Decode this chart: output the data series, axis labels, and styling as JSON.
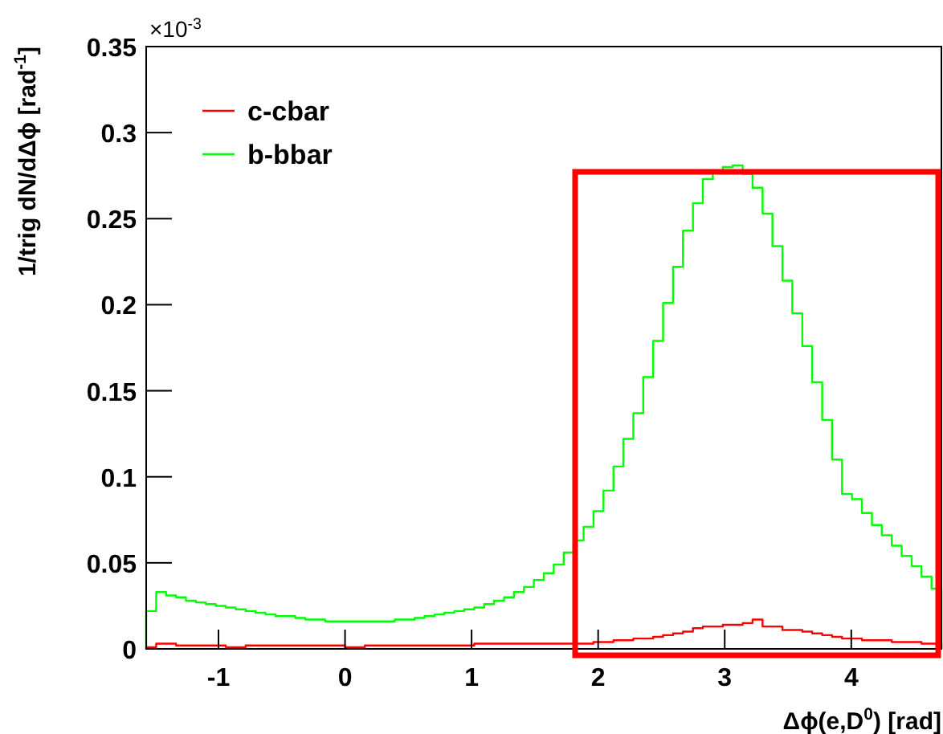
{
  "chart_data": {
    "type": "histogram",
    "xlabel": "Δϕ(e,D$^{0}$) [rad]",
    "ylabel": "1/trig dN/dΔϕ [rad$^{-1}$]",
    "annotations": [
      "×10$^{-3}$"
    ],
    "bins": [
      -1.571,
      -1.492,
      -1.414,
      -1.335,
      -1.257,
      -1.178,
      -1.1,
      -1.021,
      -0.942,
      -0.864,
      -0.785,
      -0.707,
      -0.628,
      -0.55,
      -0.471,
      -0.393,
      -0.314,
      -0.236,
      -0.157,
      -0.079,
      0,
      0.079,
      0.157,
      0.236,
      0.314,
      0.393,
      0.471,
      0.55,
      0.628,
      0.707,
      0.785,
      0.864,
      0.942,
      1.021,
      1.1,
      1.178,
      1.257,
      1.335,
      1.414,
      1.492,
      1.571,
      1.649,
      1.728,
      1.806,
      1.885,
      1.963,
      2.042,
      2.121,
      2.199,
      2.278,
      2.356,
      2.435,
      2.513,
      2.592,
      2.67,
      2.749,
      2.827,
      2.906,
      2.985,
      3.063,
      3.142,
      3.22,
      3.299,
      3.377,
      3.456,
      3.534,
      3.613,
      3.691,
      3.77,
      3.848,
      3.927,
      4.006,
      4.084,
      4.163,
      4.241,
      4.32,
      4.398,
      4.477,
      4.555,
      4.634,
      4.712
    ],
    "xlim": [
      -1.571,
      4.712
    ],
    "ylim": [
      0,
      0.35
    ],
    "xticks": [
      -1,
      0,
      1,
      2,
      3,
      4
    ],
    "yticks": [
      0,
      0.05,
      0.1,
      0.15,
      0.2,
      0.25,
      0.3,
      0.35
    ],
    "legend": "top left",
    "series": [
      {
        "name": "c-cbar",
        "color": "#ff0000",
        "values": [
          0.001,
          0.003,
          0.003,
          0.002,
          0.002,
          0.002,
          0.002,
          0.002,
          0.001,
          0.001,
          0.002,
          0.002,
          0.002,
          0.002,
          0.002,
          0.002,
          0.002,
          0.002,
          0.002,
          0.002,
          0.001,
          0.001,
          0.002,
          0.002,
          0.002,
          0.002,
          0.002,
          0.002,
          0.002,
          0.002,
          0.002,
          0.002,
          0.002,
          0.003,
          0.003,
          0.003,
          0.003,
          0.003,
          0.003,
          0.003,
          0.003,
          0.003,
          0.003,
          0.003,
          0.003,
          0.004,
          0.004,
          0.005,
          0.005,
          0.006,
          0.006,
          0.007,
          0.008,
          0.009,
          0.01,
          0.012,
          0.013,
          0.013,
          0.014,
          0.014,
          0.015,
          0.017,
          0.013,
          0.013,
          0.011,
          0.011,
          0.01,
          0.009,
          0.008,
          0.007,
          0.006,
          0.006,
          0.005,
          0.005,
          0.005,
          0.004,
          0.004,
          0.004,
          0.003,
          0.003
        ]
      },
      {
        "name": "b-bbar",
        "color": "#00ff00",
        "values": [
          0.022,
          0.033,
          0.031,
          0.03,
          0.028,
          0.027,
          0.026,
          0.025,
          0.024,
          0.023,
          0.022,
          0.021,
          0.02,
          0.019,
          0.019,
          0.018,
          0.017,
          0.017,
          0.016,
          0.016,
          0.016,
          0.016,
          0.016,
          0.016,
          0.016,
          0.017,
          0.017,
          0.018,
          0.019,
          0.02,
          0.021,
          0.022,
          0.023,
          0.024,
          0.026,
          0.028,
          0.03,
          0.033,
          0.036,
          0.04,
          0.044,
          0.049,
          0.056,
          0.063,
          0.071,
          0.08,
          0.092,
          0.106,
          0.122,
          0.137,
          0.158,
          0.179,
          0.201,
          0.222,
          0.243,
          0.259,
          0.273,
          0.278,
          0.28,
          0.281,
          0.276,
          0.268,
          0.253,
          0.234,
          0.214,
          0.195,
          0.176,
          0.155,
          0.133,
          0.11,
          0.09,
          0.087,
          0.079,
          0.072,
          0.066,
          0.06,
          0.054,
          0.048,
          0.042,
          0.035
        ]
      }
    ]
  }
}
